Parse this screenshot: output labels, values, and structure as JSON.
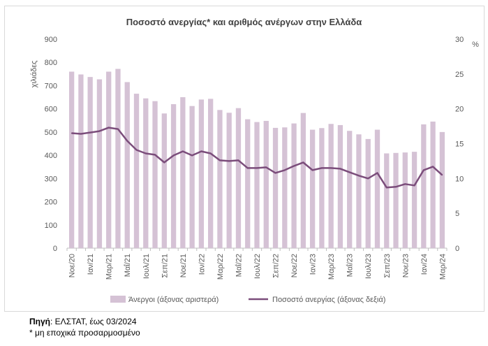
{
  "chart_data": {
    "type": "bar",
    "title": "Ποσοστό ανεργίας* και αριθμός ανέργων στην Ελλάδα",
    "ylabel": "χιλιάδες",
    "y2label": "%",
    "ylim": [
      0,
      900
    ],
    "y2lim": [
      0,
      30
    ],
    "yticks": [
      "0",
      "100",
      "200",
      "300",
      "400",
      "500",
      "600",
      "700",
      "800",
      "900"
    ],
    "y2ticks": [
      "0",
      "5",
      "10",
      "15",
      "20",
      "25",
      "30"
    ],
    "grid": false,
    "legend_position": "bottom",
    "categories": [
      "Νοε/20",
      "Δεκ/20",
      "Ιαν/21",
      "Φεβ/21",
      "Μαρ/21",
      "Απρ/21",
      "Μαΐ/21",
      "Ιουν/21",
      "Ιουλ/21",
      "Αυγ/21",
      "Σεπ/21",
      "Οκτ/21",
      "Νοε/21",
      "Δεκ/21",
      "Ιαν/22",
      "Φεβ/22",
      "Μαρ/22",
      "Απρ/22",
      "Μαΐ/22",
      "Ιουν/22",
      "Ιουλ/22",
      "Αυγ/22",
      "Σεπ/22",
      "Οκτ/22",
      "Νοε/22",
      "Δεκ/22",
      "Ιαν/23",
      "Φεβ/23",
      "Μαρ/23",
      "Απρ/23",
      "Μαΐ/23",
      "Ιουν/23",
      "Ιουλ/23",
      "Αυγ/23",
      "Σεπ/23",
      "Οκτ/23",
      "Νοε/23",
      "Δεκ/23",
      "Ιαν/24",
      "Φεβ/24",
      "Μαρ/24"
    ],
    "xtick_labels": [
      "Νοε/20",
      "Ιαν/21",
      "Μαρ/21",
      "Μαΐ/21",
      "Ιουλ/21",
      "Σεπ/21",
      "Νοε/21",
      "Ιαν/22",
      "Μαρ/22",
      "Μαΐ/22",
      "Ιουλ/22",
      "Σεπ/22",
      "Νοε/22",
      "Ιαν/23",
      "Μαρ/23",
      "Μαΐ/23",
      "Ιουλ/23",
      "Σεπ/23",
      "Νοε/23",
      "Ιαν/24",
      "Μαρ/24"
    ],
    "series": [
      {
        "name": "Άνεργοι (άξονας αριστερά)",
        "type": "bar",
        "axis": "left",
        "color": "#d5c2d5",
        "values": [
          760,
          748,
          737,
          727,
          760,
          772,
          715,
          665,
          645,
          633,
          580,
          620,
          650,
          612,
          640,
          643,
          595,
          583,
          603,
          555,
          543,
          548,
          518,
          520,
          537,
          582,
          510,
          517,
          535,
          530,
          505,
          490,
          470,
          510,
          408,
          410,
          412,
          415,
          533,
          545,
          500
        ]
      },
      {
        "name": "Ποσοστό ανεργίας (άξονας δεξιά)",
        "type": "line",
        "axis": "right",
        "color": "#7b4d7b",
        "values": [
          16.5,
          16.4,
          16.6,
          16.8,
          17.3,
          17.1,
          15.4,
          14.1,
          13.6,
          13.4,
          12.3,
          13.3,
          13.9,
          13.3,
          13.9,
          13.6,
          12.6,
          12.5,
          12.6,
          11.5,
          11.5,
          11.6,
          10.8,
          11.2,
          11.8,
          12.3,
          11.2,
          11.5,
          11.5,
          11.4,
          10.9,
          10.4,
          10.0,
          10.8,
          8.7,
          8.8,
          9.2,
          9.0,
          11.2,
          11.7,
          10.5
        ]
      }
    ]
  },
  "source": {
    "label": "Πηγή",
    "text": ": ΕΛΣΤΑΤ, έως 03/2024",
    "note": "* μη εποχικά προσαρμοσμένο"
  }
}
